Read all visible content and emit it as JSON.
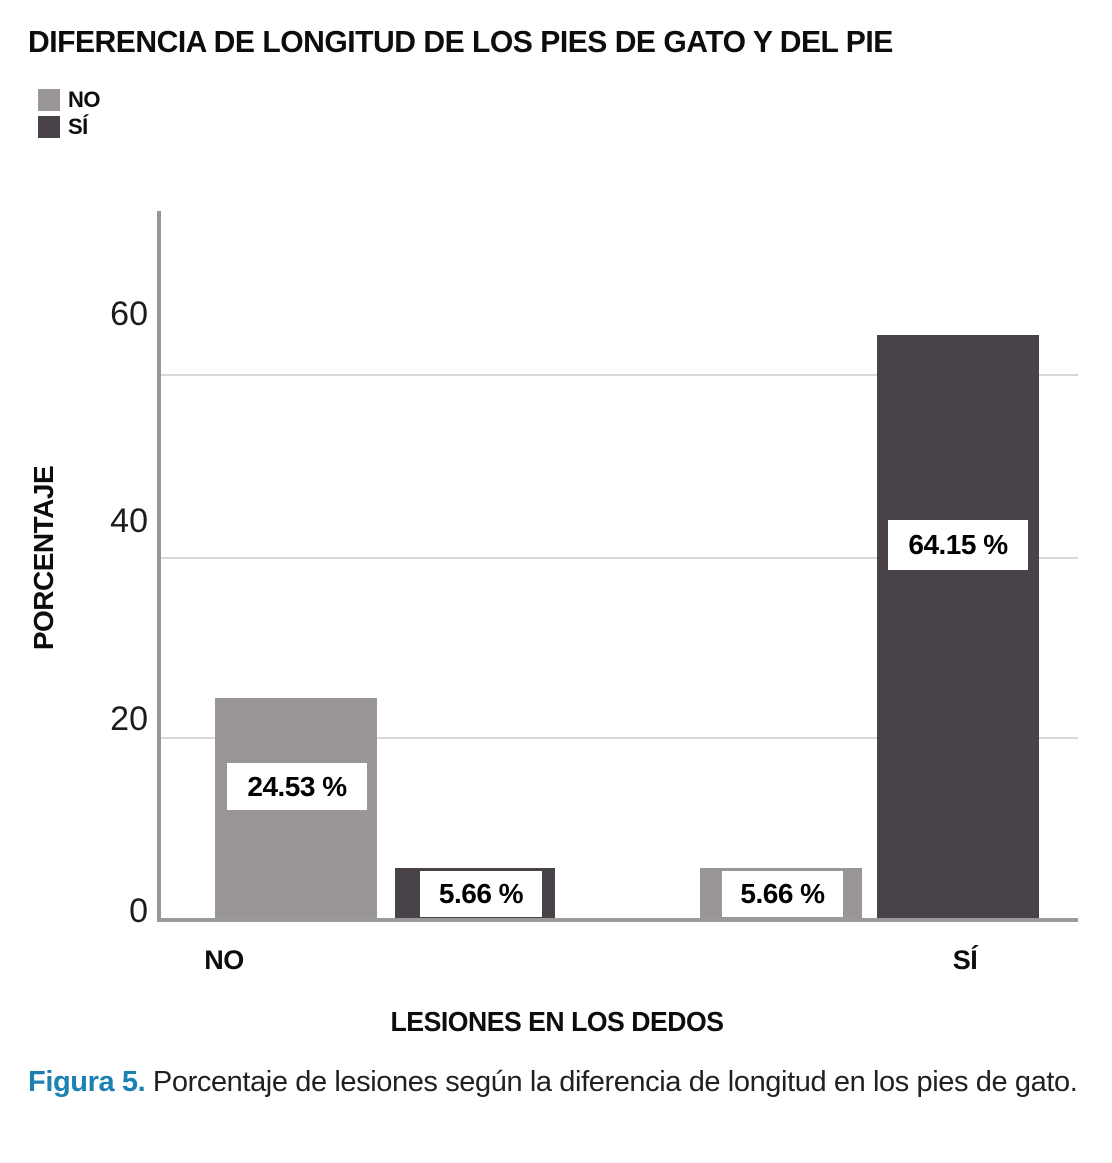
{
  "title": "DIFERENCIA DE LONGITUD DE LOS PIES DE GATO Y DEL PIE",
  "legend": {
    "items": [
      {
        "label": "NO",
        "color": "#9a9597"
      },
      {
        "label": "SÍ",
        "color": "#494249"
      }
    ]
  },
  "axes": {
    "y_title": "PORCENTAJE",
    "x_title": "LESIONES EN LOS DEDOS",
    "y_ticks": [
      "60",
      "40",
      "20",
      "0"
    ],
    "x_categories": [
      "NO",
      "SÍ"
    ]
  },
  "bars": {
    "no_gray": "24.53 %",
    "no_dark": "5.66 %",
    "si_gray": "5.66 %",
    "si_dark": "64.15 %"
  },
  "caption": {
    "figure_label": "Figura 5.",
    "text": " Porcentaje de lesiones según la diferencia de longitud en los pies de gato."
  },
  "colors": {
    "series_no": "#9a9597",
    "series_si": "#494249",
    "caption_accent": "#1d80b3",
    "gridline": "#d9d9d9",
    "axis": "#969696",
    "value_label_bg": "#ffffff"
  },
  "chart_data": {
    "type": "bar",
    "title": "DIFERENCIA DE LONGITUD DE LOS PIES DE GATO Y DEL PIE",
    "categories": [
      "NO",
      "SÍ"
    ],
    "series": [
      {
        "name": "NO",
        "color": "#9a9597",
        "values": [
          24.53,
          5.66
        ]
      },
      {
        "name": "SÍ",
        "color": "#494249",
        "values": [
          5.66,
          64.15
        ]
      }
    ],
    "value_labels": [
      [
        "24.53 %",
        "5.66 %"
      ],
      [
        "5.66 %",
        "64.15 %"
      ]
    ],
    "xlabel": "LESIONES EN LOS DEDOS",
    "ylabel": "PORCENTAJE",
    "yticks": [
      0,
      20,
      40,
      60
    ],
    "ylim": [
      0,
      70
    ],
    "unit": "%",
    "grid": true,
    "legend_position": "top-left"
  }
}
